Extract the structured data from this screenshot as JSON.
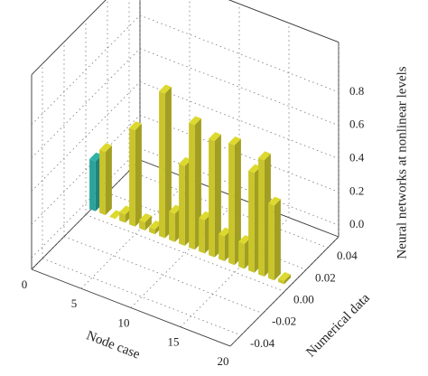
{
  "chart_data": {
    "type": "bar3d",
    "x_label": "Node case",
    "y_label": "Numerical data",
    "z_label": "Neural networks at nonlinear levels",
    "x": [
      1,
      2,
      3,
      4,
      5,
      6,
      7,
      8,
      9,
      10,
      11,
      12,
      13,
      14,
      15,
      16,
      17,
      18,
      19,
      20
    ],
    "values": [
      0.3,
      0.38,
      0,
      0.05,
      0.58,
      0.05,
      0.03,
      0.87,
      0.17,
      0.48,
      0.75,
      0.2,
      0.7,
      0.15,
      0.72,
      0.15,
      0.6,
      0.7,
      0.45,
      0.02
    ],
    "colors": [
      "#2aa39c",
      "#c9c52a",
      "#c9c52a",
      "#c9c52a",
      "#c9c52a",
      "#c9c52a",
      "#c9c52a",
      "#c9c52a",
      "#c9c52a",
      "#c9c52a",
      "#c9c52a",
      "#c9c52a",
      "#c9c52a",
      "#c9c52a",
      "#c9c52a",
      "#c9c52a",
      "#c9c52a",
      "#c9c52a",
      "#c9c52a",
      "#c9c52a"
    ],
    "xlim": [
      0,
      20
    ],
    "xticks": [
      0,
      5,
      10,
      15,
      20
    ],
    "ylim": [
      -0.05,
      0.05
    ],
    "yticks": [
      -0.04,
      -0.02,
      {
        "value": 0,
        "label": "0.00"
      },
      0.02,
      0.04
    ],
    "zlim": [
      -0.07,
      1.1
    ],
    "zticks": [
      {
        "value": 0,
        "label": "0.0"
      },
      0.2,
      0.4,
      0.6,
      0.8
    ],
    "grid": true
  }
}
